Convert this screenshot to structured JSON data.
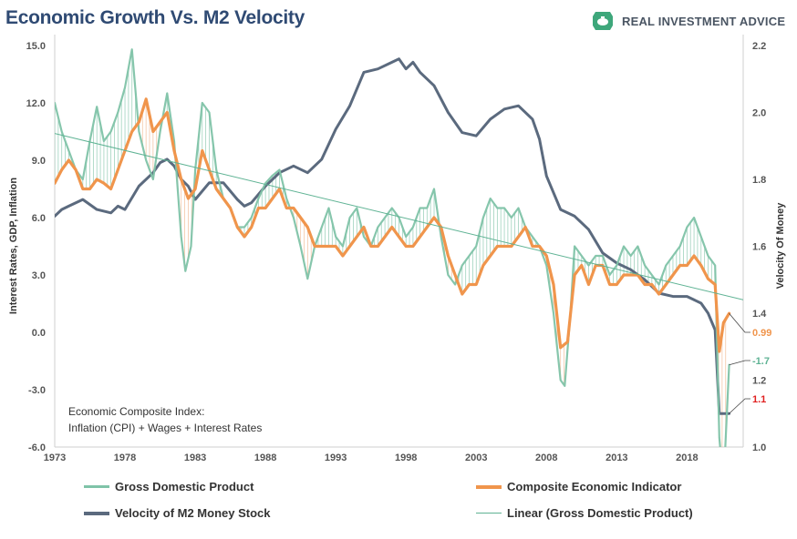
{
  "header": {
    "title": "Economic Growth Vs. M2 Velocity",
    "brand": "REAL INVESTMENT ADVICE",
    "brand_logo_icon": "piggy-bank-icon",
    "brand_color": "#3ea77b"
  },
  "annotation": {
    "line1": "Economic Composite Index:",
    "line2": "Inflation (CPI) + Wages + Interest Rates"
  },
  "chart_data": {
    "type": "line",
    "title": "Economic Growth Vs. M2 Velocity",
    "ylabel_left": "Interest Rates, GDP, Inflation",
    "ylabel_right": "Velocity Of Money",
    "xlim": [
      1973,
      2022
    ],
    "ylim_left": [
      -6,
      15
    ],
    "ylim_right": [
      1.0,
      2.2
    ],
    "x_ticks": [
      "1973",
      "1978",
      "1983",
      "1988",
      "1993",
      "1998",
      "2003",
      "2008",
      "2013",
      "2018"
    ],
    "x_tick_values": [
      1973,
      1978,
      1983,
      1988,
      1993,
      1998,
      2003,
      2008,
      2013,
      2018
    ],
    "y_left_ticks": [
      "15.0",
      "12.0",
      "9.0",
      "6.0",
      "3.0",
      "0.0",
      "-3.0",
      "-6.0"
    ],
    "y_left_tick_values": [
      15,
      12,
      9,
      6,
      3,
      0,
      -3,
      -6
    ],
    "y_right_ticks": [
      "2.2",
      "2.0",
      "1.8",
      "1.6",
      "1.4",
      "1.2",
      "1.0"
    ],
    "y_right_tick_values": [
      2.2,
      2.0,
      1.8,
      1.6,
      1.4,
      1.2,
      1.0
    ],
    "grid": false,
    "legend_position": "bottom",
    "series": [
      {
        "name": "Gross Domestic Product",
        "axis": "left",
        "color": "#7fc3a8",
        "x": [
          1973,
          1973.5,
          1974,
          1974.5,
          1975,
          1975.5,
          1976,
          1976.5,
          1977,
          1977.5,
          1978,
          1978.5,
          1979,
          1979.5,
          1980,
          1980.5,
          1981,
          1981.5,
          1982,
          1982.3,
          1982.7,
          1983,
          1983.5,
          1984,
          1984.5,
          1985,
          1985.5,
          1986,
          1986.5,
          1987,
          1987.5,
          1988,
          1988.5,
          1989,
          1989.5,
          1990,
          1990.5,
          1991,
          1991.5,
          1992,
          1992.5,
          1993,
          1993.5,
          1994,
          1994.5,
          1995,
          1995.5,
          1996,
          1996.5,
          1997,
          1997.5,
          1998,
          1998.5,
          1999,
          1999.5,
          2000,
          2000.5,
          2001,
          2001.5,
          2002,
          2002.5,
          2003,
          2003.5,
          2004,
          2004.5,
          2005,
          2005.5,
          2006,
          2006.5,
          2007,
          2007.5,
          2008,
          2008.5,
          2009,
          2009.3,
          2009.7,
          2010,
          2010.5,
          2011,
          2011.5,
          2012,
          2012.5,
          2013,
          2013.5,
          2014,
          2014.5,
          2015,
          2015.5,
          2016,
          2016.5,
          2017,
          2017.5,
          2018,
          2018.5,
          2019,
          2019.5,
          2020,
          2020.3,
          2020.6,
          2021
        ],
        "y": [
          12.0,
          10.5,
          9.5,
          8.5,
          8.0,
          10.0,
          11.8,
          10.0,
          10.5,
          11.5,
          12.8,
          14.8,
          10.5,
          9.0,
          8.0,
          10.5,
          12.5,
          10.0,
          5.0,
          3.2,
          4.5,
          8.5,
          12.0,
          11.5,
          8.5,
          7.0,
          6.5,
          5.5,
          5.5,
          6.0,
          7.0,
          7.8,
          8.2,
          8.5,
          7.0,
          6.0,
          4.5,
          2.8,
          4.5,
          5.5,
          6.5,
          5.0,
          4.5,
          6.0,
          6.5,
          5.0,
          4.5,
          5.5,
          6.0,
          6.5,
          6.0,
          5.0,
          5.5,
          6.5,
          6.5,
          7.5,
          5.0,
          3.0,
          2.5,
          3.5,
          4.0,
          4.5,
          6.0,
          7.0,
          6.5,
          6.5,
          6.0,
          6.5,
          5.5,
          5.0,
          4.5,
          3.5,
          1.0,
          -2.5,
          -2.8,
          1.0,
          4.5,
          4.0,
          3.5,
          4.0,
          4.0,
          3.0,
          3.5,
          4.5,
          4.0,
          4.5,
          3.5,
          3.0,
          2.5,
          3.5,
          4.0,
          4.5,
          5.5,
          6.0,
          5.0,
          4.0,
          3.5,
          -5.5,
          -8.0,
          -1.7
        ]
      },
      {
        "name": "Composite Economic Indicator",
        "axis": "left",
        "color": "#f0954c",
        "x": [
          1973,
          1973.5,
          1974,
          1974.5,
          1975,
          1975.5,
          1976,
          1976.5,
          1977,
          1977.5,
          1978,
          1978.5,
          1979,
          1979.5,
          1980,
          1980.5,
          1981,
          1981.5,
          1982,
          1982.5,
          1983,
          1983.5,
          1984,
          1984.5,
          1985,
          1985.5,
          1986,
          1986.5,
          1987,
          1987.5,
          1988,
          1988.5,
          1989,
          1989.5,
          1990,
          1990.5,
          1991,
          1991.5,
          1992,
          1992.5,
          1993,
          1993.5,
          1994,
          1994.5,
          1995,
          1995.5,
          1996,
          1996.5,
          1997,
          1997.5,
          1998,
          1998.5,
          1999,
          1999.5,
          2000,
          2000.5,
          2001,
          2001.5,
          2002,
          2002.5,
          2003,
          2003.5,
          2004,
          2004.5,
          2005,
          2005.5,
          2006,
          2006.5,
          2007,
          2007.5,
          2008,
          2008.5,
          2009,
          2009.5,
          2010,
          2010.5,
          2011,
          2011.5,
          2012,
          2012.5,
          2013,
          2013.5,
          2014,
          2014.5,
          2015,
          2015.5,
          2016,
          2016.5,
          2017,
          2017.5,
          2018,
          2018.5,
          2019,
          2019.5,
          2020,
          2020.3,
          2020.6,
          2021
        ],
        "y": [
          7.8,
          8.5,
          9.0,
          8.5,
          7.5,
          7.5,
          8.0,
          7.8,
          7.5,
          8.5,
          9.5,
          10.5,
          11.0,
          12.2,
          10.5,
          11.0,
          11.5,
          9.5,
          8.0,
          7.0,
          7.5,
          9.5,
          8.5,
          7.5,
          7.0,
          6.5,
          5.5,
          5.0,
          5.5,
          6.5,
          6.5,
          7.0,
          7.5,
          6.5,
          6.5,
          6.0,
          5.5,
          4.5,
          4.5,
          4.5,
          4.5,
          4.0,
          4.5,
          5.0,
          5.5,
          4.5,
          4.5,
          5.0,
          5.5,
          5.0,
          4.5,
          4.5,
          5.0,
          5.5,
          6.0,
          5.5,
          4.0,
          3.0,
          2.0,
          2.5,
          2.5,
          3.5,
          4.0,
          4.5,
          4.5,
          4.5,
          5.0,
          5.5,
          4.5,
          4.5,
          4.0,
          2.5,
          -0.8,
          -0.5,
          3.0,
          3.5,
          2.5,
          3.5,
          3.5,
          2.5,
          2.5,
          3.0,
          3.0,
          3.0,
          2.5,
          2.5,
          2.0,
          2.5,
          3.0,
          3.5,
          3.5,
          4.0,
          3.5,
          2.8,
          2.5,
          -1.0,
          0.5,
          0.99
        ]
      },
      {
        "name": "Velocity of M2 Money Stock",
        "axis": "right",
        "color": "#5b6a7e",
        "x": [
          1973,
          1973.5,
          1974,
          1975,
          1976,
          1977,
          1977.5,
          1978,
          1979,
          1980,
          1980.5,
          1981,
          1981.5,
          1982,
          1982.5,
          1983,
          1984,
          1985,
          1986,
          1986.5,
          1987,
          1988,
          1989,
          1990,
          1991,
          1992,
          1993,
          1994,
          1995,
          1996,
          1997,
          1997.5,
          1998,
          1998.5,
          1999,
          2000,
          2001,
          2002,
          2003,
          2004,
          2005,
          2006,
          2007,
          2007.5,
          2008,
          2009,
          2010,
          2011,
          2012,
          2013,
          2014,
          2015,
          2016,
          2017,
          2018,
          2019,
          2019.5,
          2020,
          2020.3,
          2021
        ],
        "y": [
          1.69,
          1.71,
          1.72,
          1.74,
          1.71,
          1.7,
          1.72,
          1.71,
          1.78,
          1.82,
          1.85,
          1.86,
          1.84,
          1.8,
          1.78,
          1.74,
          1.79,
          1.79,
          1.74,
          1.72,
          1.73,
          1.78,
          1.82,
          1.84,
          1.82,
          1.86,
          1.95,
          2.02,
          2.12,
          2.13,
          2.15,
          2.16,
          2.13,
          2.15,
          2.12,
          2.08,
          2.0,
          1.94,
          1.93,
          1.98,
          2.01,
          2.02,
          1.98,
          1.92,
          1.81,
          1.71,
          1.69,
          1.65,
          1.58,
          1.55,
          1.53,
          1.5,
          1.46,
          1.45,
          1.45,
          1.43,
          1.4,
          1.35,
          1.1,
          1.1
        ]
      },
      {
        "name": "Linear (Gross Domestic Product)",
        "axis": "left",
        "color": "#5fb394",
        "x": [
          1973,
          2022
        ],
        "y": [
          10.4,
          1.7
        ]
      }
    ],
    "end_labels": [
      {
        "text": "0.99",
        "color": "#f0954c"
      },
      {
        "text": "-1.7",
        "color": "#5fb394"
      },
      {
        "text": "1.1",
        "color": "#e02020"
      }
    ]
  }
}
